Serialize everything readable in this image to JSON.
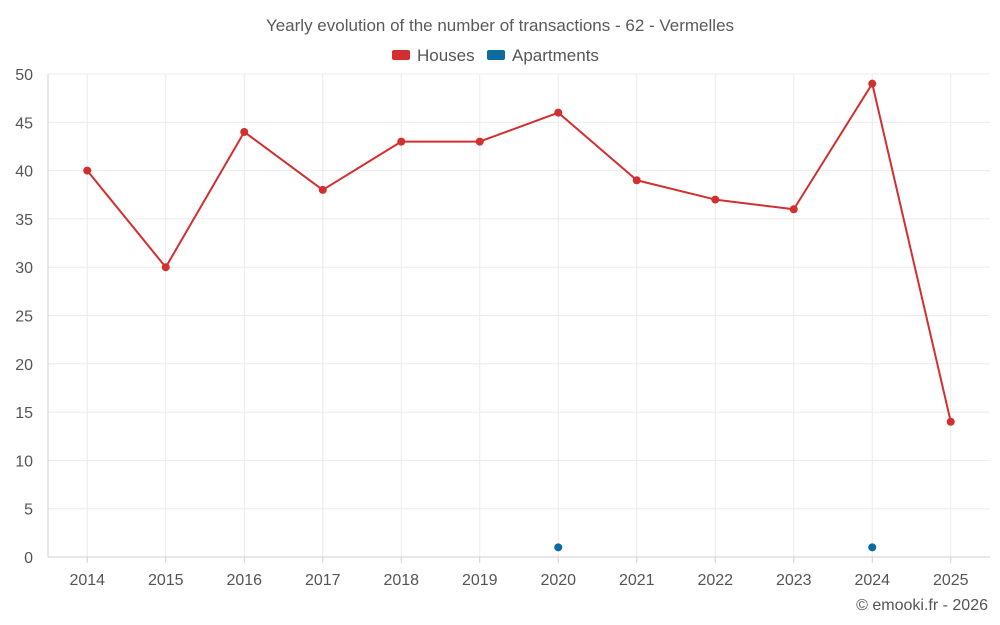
{
  "chart_data": {
    "type": "line",
    "title": "Yearly evolution of the number of transactions - 62 - Vermelles",
    "categories": [
      "2014",
      "2015",
      "2016",
      "2017",
      "2018",
      "2019",
      "2020",
      "2021",
      "2022",
      "2023",
      "2024",
      "2025"
    ],
    "series": [
      {
        "name": "Houses",
        "color": "#d32f2f",
        "values": [
          40,
          30,
          44,
          38,
          43,
          43,
          46,
          39,
          37,
          36,
          49,
          14
        ]
      },
      {
        "name": "Apartments",
        "color": "#0a6aa1",
        "values": [
          null,
          null,
          null,
          null,
          null,
          null,
          1,
          null,
          null,
          null,
          1,
          null
        ]
      }
    ],
    "ylim": [
      0,
      50
    ],
    "yticks": [
      0,
      5,
      10,
      15,
      20,
      25,
      30,
      35,
      40,
      45,
      50
    ],
    "xlabel": "",
    "ylabel": "",
    "grid": true,
    "legend_position": "top-center"
  },
  "credit": "© emooki.fr - 2026"
}
